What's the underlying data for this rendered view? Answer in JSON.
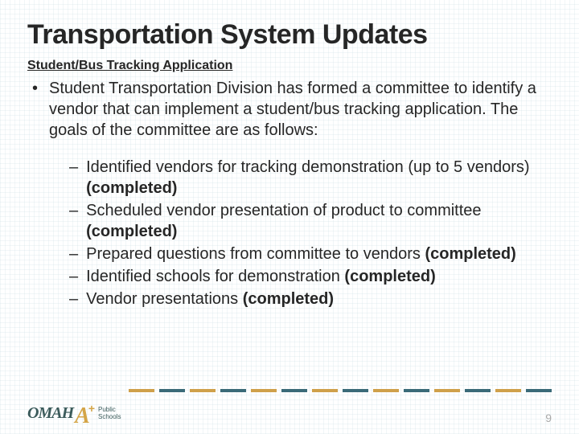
{
  "title": "Transportation System Updates",
  "subtitle": "Student/Bus Tracking Application",
  "intro": "Student Transportation Division has formed a committee to identify a vendor that can implement a student/bus tracking application. The goals of the committee are as follows:",
  "items": [
    {
      "text": "Identified vendors for tracking demonstration (up to 5 vendors) ",
      "status": "(completed)"
    },
    {
      "text": "Scheduled vendor presentation of product to committee ",
      "status": "(completed)"
    },
    {
      "text": "Prepared questions from committee to vendors ",
      "status": "(completed)"
    },
    {
      "text": "Identified schools for demonstration ",
      "status": "(completed)"
    },
    {
      "text": "Vendor presentations ",
      "status": "(completed)"
    }
  ],
  "dash_colors": [
    "#cfa04a",
    "#3a6a78",
    "#cfa04a",
    "#3a6a78",
    "#cfa04a",
    "#3a6a78",
    "#cfa04a",
    "#3a6a78",
    "#cfa04a",
    "#3a6a78",
    "#cfa04a",
    "#3a6a78",
    "#cfa04a",
    "#3a6a78"
  ],
  "logo": {
    "main": "OMAH",
    "a": "A",
    "plus": "+",
    "sub1": "Public",
    "sub2": "Schools"
  },
  "page_number": "9",
  "colors": {
    "title": "#262626",
    "body": "#262626",
    "page_num": "#a9a9a9",
    "logo_teal": "#3a5a5a",
    "logo_gold": "#d4a548"
  }
}
